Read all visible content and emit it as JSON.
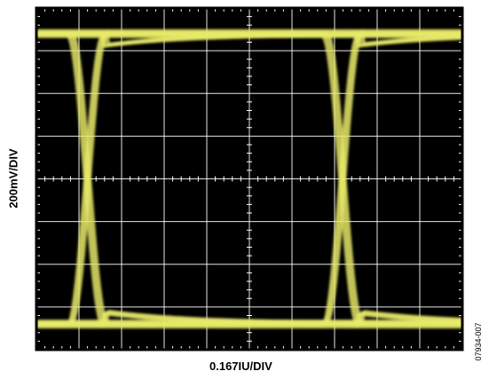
{
  "chart_data": {
    "type": "line",
    "title": "",
    "xlabel": "0.167IU/DIV",
    "ylabel": "200mV/DIV",
    "grid": true,
    "divisions": {
      "x": 10,
      "y": 8
    },
    "xlim": [
      0,
      1.67
    ],
    "ylim": [
      -800,
      800
    ],
    "x_unit": "IU",
    "y_unit": "mV",
    "eye": {
      "high_level": 680,
      "low_level": -680,
      "crossings": [
        0.2,
        1.2
      ],
      "crossing_level": 0,
      "rise_fall_time": 0.14
    },
    "background": "#000000",
    "grid_color": "#ffffff",
    "trace_color": "#e8ea6a"
  },
  "figure_id": "07934-007"
}
